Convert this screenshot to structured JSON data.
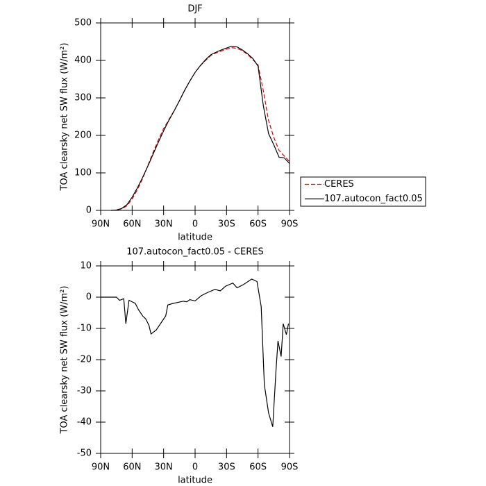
{
  "chart_data": [
    {
      "type": "line",
      "title": "DJF",
      "x_label": "latitude",
      "y_label": "TOA clearsky net SW flux (W/m²)",
      "x": [
        80,
        75,
        70,
        65,
        60,
        55,
        50,
        45,
        40,
        35,
        30,
        25,
        20,
        15,
        10,
        5,
        0,
        -5,
        -10,
        -15,
        -20,
        -25,
        -30,
        -35,
        -40,
        -45,
        -50,
        -55,
        -60,
        -65,
        -70,
        -75,
        -80,
        -85,
        -90
      ],
      "series": [
        {
          "name": "CERES",
          "color": "#e00000",
          "line_style": "dashed",
          "values": [
            0,
            1,
            4,
            12,
            30,
            55,
            85,
            120,
            155,
            188,
            218,
            242,
            266,
            292,
            320,
            345,
            368,
            386,
            400,
            413,
            420,
            425,
            430,
            434,
            432,
            426,
            416,
            402,
            388,
            320,
            240,
            195,
            160,
            145,
            130
          ]
        },
        {
          "name": "107.autocon_fact0.05",
          "color": "#000000",
          "line_style": "solid",
          "values": [
            0,
            1,
            5,
            15,
            35,
            60,
            88,
            118,
            150,
            182,
            212,
            240,
            265,
            292,
            320,
            345,
            368,
            386,
            402,
            415,
            422,
            428,
            433,
            438,
            436,
            428,
            418,
            405,
            385,
            280,
            205,
            175,
            142,
            140,
            125
          ]
        }
      ],
      "xlim": [
        90,
        -90
      ],
      "xticks": [
        {
          "value": 90,
          "label": "90N"
        },
        {
          "value": 60,
          "label": "60N"
        },
        {
          "value": 30,
          "label": "30N"
        },
        0,
        {
          "value": -30,
          "label": "30S"
        },
        {
          "value": -60,
          "label": "60S"
        },
        {
          "value": -90,
          "label": "90S"
        }
      ],
      "ylim": [
        0,
        500
      ],
      "yticks": [
        0,
        100,
        200,
        300,
        400,
        500
      ],
      "legend": "right"
    },
    {
      "type": "line",
      "title": "107.autocon_fact0.05 - CERES",
      "x_label": "latitude",
      "y_label": "TOA clearsky net SW flux (W/m²)",
      "x": [
        90,
        85,
        80,
        75,
        72,
        68,
        66,
        63,
        57,
        54,
        50,
        47,
        44,
        42,
        37,
        32,
        28,
        26,
        21,
        11,
        8,
        5,
        0,
        -6,
        -12,
        -19,
        -24,
        -29,
        -36,
        -40,
        -46,
        -54,
        -59,
        -63,
        -66,
        -70,
        -74,
        -77,
        -79,
        -82,
        -84,
        -87,
        -89
      ],
      "series": [
        {
          "name": "107.autocon_fact0.05 - CERES",
          "color": "#000000",
          "line_style": "solid",
          "values": [
            0,
            0,
            0,
            0,
            -1,
            -0.5,
            -8.5,
            -1,
            -2,
            -4,
            -6,
            -7,
            -9,
            -11.8,
            -10.5,
            -8,
            -6,
            -2.5,
            -2,
            -1.3,
            -1.5,
            -0.8,
            -1.2,
            0.5,
            1.5,
            2.5,
            2,
            3.5,
            4.5,
            3,
            4,
            5.8,
            5,
            -3,
            -28,
            -37,
            -41.5,
            -24,
            -14,
            -19,
            -8.5,
            -12,
            -8.5
          ]
        }
      ],
      "xlim": [
        90,
        -90
      ],
      "xticks": [
        {
          "value": 90,
          "label": "90N"
        },
        {
          "value": 60,
          "label": "60N"
        },
        {
          "value": 30,
          "label": "30N"
        },
        0,
        {
          "value": -30,
          "label": "30S"
        },
        {
          "value": -60,
          "label": "60S"
        },
        {
          "value": -90,
          "label": "90S"
        }
      ],
      "ylim": [
        -50,
        10
      ],
      "yticks": [
        -50,
        -40,
        -30,
        -20,
        -10,
        0,
        10
      ]
    }
  ]
}
